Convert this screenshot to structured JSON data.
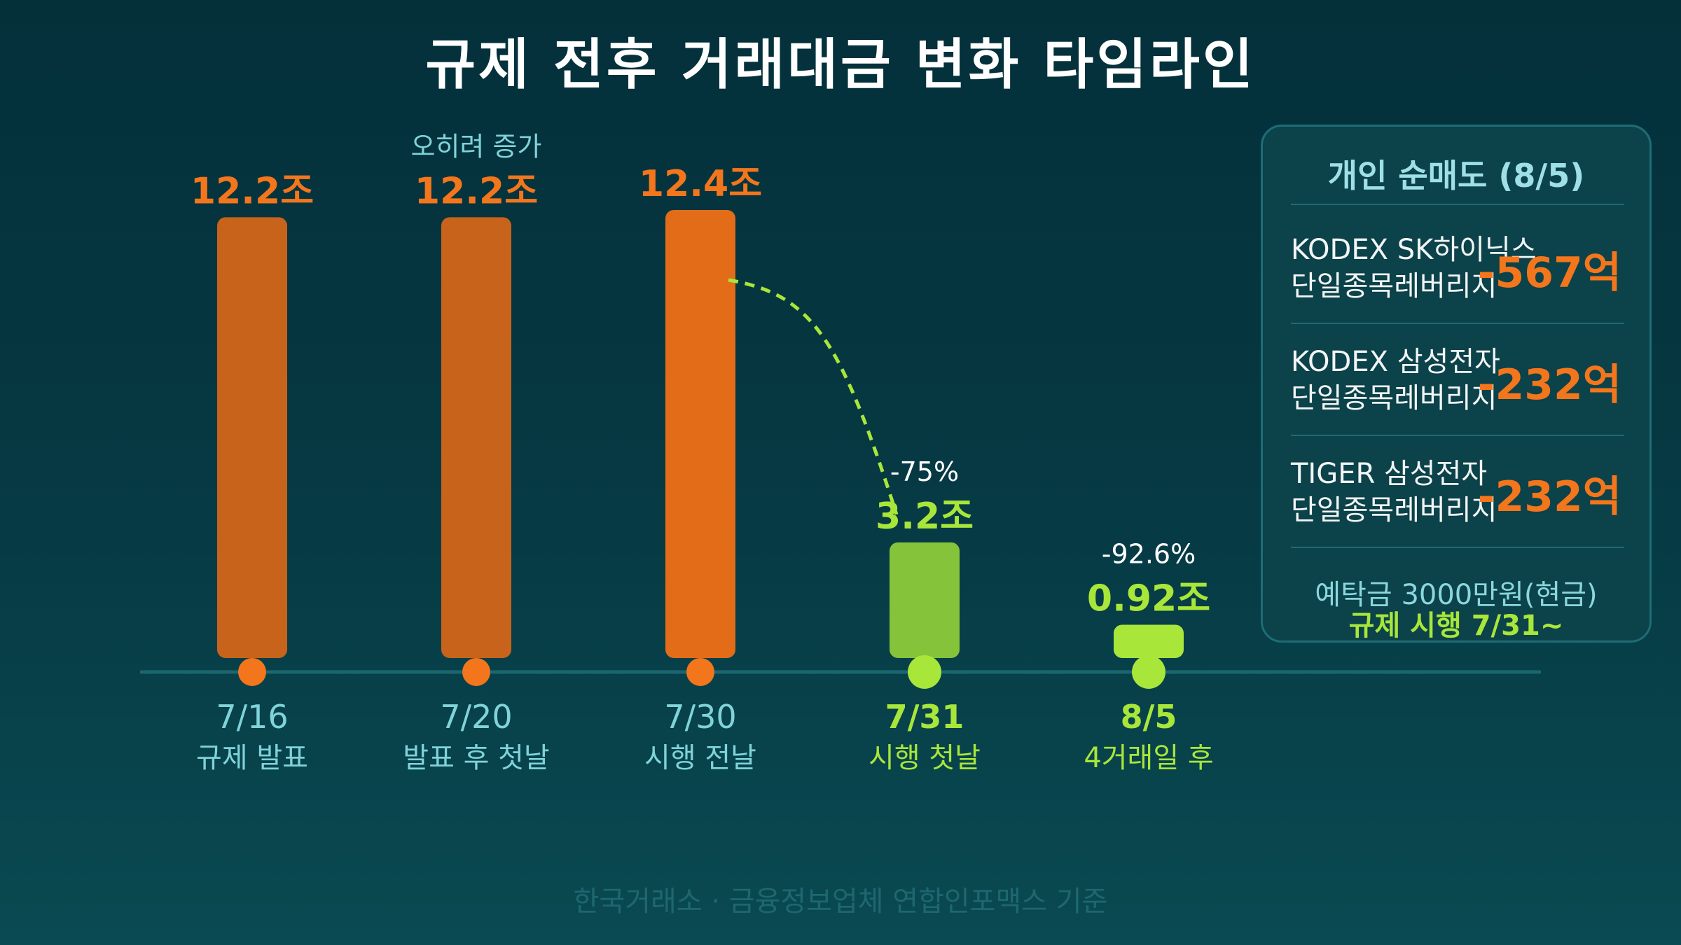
{
  "chart_data": {
    "type": "bar",
    "title": "규제 전후 거래대금 변화 타임라인",
    "unit": "조",
    "categories": [
      "7/16",
      "7/20",
      "7/30",
      "7/31",
      "8/5"
    ],
    "category_sublabels": [
      "규제 발표",
      "발표 후 첫날",
      "시행 전날",
      "시행 첫날",
      "4거래일 후"
    ],
    "values": [
      12.2,
      12.2,
      12.4,
      3.2,
      0.92
    ],
    "value_labels": [
      "12.2조",
      "12.2조",
      "12.4조",
      "3.2조",
      "0.92조"
    ],
    "annotations": [
      "",
      "오히려 증가",
      "",
      "-75%",
      "-92.6%"
    ],
    "colors": [
      "#c8631b",
      "#c8631b",
      "#e36c19",
      "#84c33a",
      "#a8e63a"
    ],
    "label_colors": [
      "#f3761c",
      "#f3761c",
      "#f3761c",
      "#a8e63a",
      "#a8e63a"
    ],
    "xlabel": "",
    "ylabel": ""
  },
  "panel": {
    "title": "개인 순매도 (8/5)",
    "rows": [
      {
        "line1": "KODEX SK하이닉스",
        "line2": "단일종목레버리지",
        "value": "-567억"
      },
      {
        "line1": "KODEX 삼성전자",
        "line2": "단일종목레버리지",
        "value": "-232억"
      },
      {
        "line1": "TIGER 삼성전자",
        "line2": "단일종목레버리지",
        "value": "-232억"
      }
    ],
    "footer_line1": "예탁금 3000만원(현금)",
    "footer_line2": "규제 시행 7/31~"
  },
  "source": "한국거래소 · 금융정보업체 연합인포맥스 기준",
  "colors": {
    "orange": "#f3761c",
    "green": "#a8e63a",
    "axis": "#1b6670",
    "sublabel_default": "#7fd3d9"
  }
}
